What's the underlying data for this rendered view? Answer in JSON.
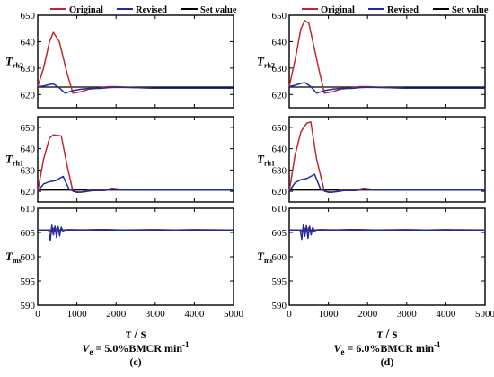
{
  "legend": [
    {
      "label": "Original",
      "color": "#c0282d"
    },
    {
      "label": "Revised",
      "color": "#1c2ea0"
    },
    {
      "label": "Set value",
      "color": "#000000"
    }
  ],
  "chart_data": [
    {
      "type": "line",
      "id": "c",
      "xlabel_var": "τ",
      "xlabel_unit": " / s",
      "xlim": [
        0,
        5000
      ],
      "xticks": [
        0,
        1000,
        2000,
        3000,
        4000,
        5000
      ],
      "caption_var": "V",
      "caption_sub": "e",
      "caption_rest": " = 5.0%BMCR min",
      "caption_sup": "-1",
      "caption_label": "(c)",
      "panels": [
        {
          "ylabel_main": "T",
          "ylabel_sub": "rh2",
          "ylim": [
            615,
            650
          ],
          "yticks": [
            620,
            630,
            640,
            650
          ],
          "series": [
            {
              "name": "Original",
              "x": [
                0,
                150,
                300,
                400,
                550,
                750,
                900,
                1100,
                1300,
                1600,
                1800,
                2000,
                2500,
                3000,
                3500,
                4000,
                4500,
                5000
              ],
              "y": [
                623,
                630,
                640,
                643.5,
                640,
                628,
                620.5,
                621,
                622,
                622.5,
                623,
                623,
                622.6,
                622.4,
                622.4,
                622.4,
                622.4,
                622.4
              ]
            },
            {
              "name": "Revised",
              "x": [
                0,
                150,
                300,
                400,
                550,
                700,
                900,
                1100,
                1300,
                1600,
                1800,
                2000,
                2500,
                3000,
                3500,
                4000,
                4500,
                5000
              ],
              "y": [
                623,
                623.2,
                623.8,
                624,
                622.5,
                620.5,
                621.5,
                622,
                622.3,
                622.3,
                622.6,
                622.7,
                622.6,
                622.4,
                622.4,
                622.4,
                622.4,
                622.4
              ]
            },
            {
              "name": "Set value",
              "x": [
                0,
                5000
              ],
              "y": [
                622.8,
                622.8
              ]
            }
          ]
        },
        {
          "ylabel_main": "T",
          "ylabel_sub": "rh1",
          "ylim": [
            615,
            655
          ],
          "yticks": [
            620,
            630,
            640,
            650
          ],
          "series": [
            {
              "name": "Original",
              "x": [
                0,
                150,
                300,
                400,
                600,
                750,
                900,
                1100,
                1300,
                1700,
                1900,
                2100,
                2500,
                3000,
                3500,
                4000,
                4500,
                5000
              ],
              "y": [
                620,
                635,
                645,
                646.5,
                646,
                632,
                620,
                619.5,
                620.5,
                620.5,
                621.5,
                621,
                620.6,
                620.6,
                620.6,
                620.6,
                620.6,
                620.6
              ]
            },
            {
              "name": "Revised",
              "x": [
                0,
                150,
                300,
                450,
                650,
                800,
                1000,
                1200,
                1400,
                1700,
                1900,
                2100,
                2500,
                3000,
                3500,
                4000,
                4500,
                5000
              ],
              "y": [
                620,
                623.5,
                624.5,
                625,
                627,
                621,
                619.5,
                619.8,
                620.4,
                620.4,
                621,
                620.8,
                620.6,
                620.6,
                620.6,
                620.6,
                620.6,
                620.6
              ]
            },
            {
              "name": "Set value",
              "x": [
                0,
                5000
              ],
              "y": [
                620.6,
                620.6
              ]
            }
          ]
        },
        {
          "ylabel_main": "T",
          "ylabel_sub": "ms",
          "ylim": [
            590,
            610
          ],
          "yticks": [
            590,
            595,
            600,
            605,
            610
          ],
          "series": [
            {
              "name": "Original",
              "x": [
                0,
                300,
                350,
                400,
                450,
                500,
                550,
                600,
                650,
                800,
                1200,
                1800,
                2200,
                3000,
                3500,
                4000,
                5000
              ],
              "y": [
                605.5,
                605.5,
                605,
                605.9,
                605.2,
                606,
                605.1,
                605.8,
                605.5,
                605.6,
                605.5,
                605.6,
                605.5,
                605.6,
                605.5,
                605.6,
                605.5
              ]
            },
            {
              "name": "Revised",
              "x": [
                0,
                280,
                320,
                360,
                400,
                440,
                480,
                520,
                560,
                600,
                640,
                700,
                1000,
                1600,
                2000,
                3000,
                4000,
                5000
              ],
              "y": [
                605.5,
                605.5,
                603.3,
                606.5,
                604.5,
                606.3,
                604,
                606.2,
                604.3,
                606.1,
                605.3,
                605.5,
                605.5,
                605.6,
                605.5,
                605.5,
                605.5,
                605.5
              ]
            },
            {
              "name": "Set value",
              "x": [
                0,
                5000
              ],
              "y": [
                605.5,
                605.5
              ]
            }
          ]
        }
      ]
    },
    {
      "type": "line",
      "id": "d",
      "xlabel_var": "τ",
      "xlabel_unit": " / s",
      "xlim": [
        0,
        5000
      ],
      "xticks": [
        0,
        1000,
        2000,
        3000,
        4000,
        5000
      ],
      "caption_var": "V",
      "caption_sub": "e",
      "caption_rest": " = 6.0%BMCR min",
      "caption_sup": "-1",
      "caption_label": "(d)",
      "panels": [
        {
          "ylabel_main": "T",
          "ylabel_sub": "rh2",
          "ylim": [
            615,
            650
          ],
          "yticks": [
            620,
            630,
            640,
            650
          ],
          "series": [
            {
              "name": "Original",
              "x": [
                0,
                150,
                300,
                400,
                500,
                750,
                900,
                1100,
                1300,
                1600,
                1800,
                2000,
                2500,
                3000,
                3500,
                4000,
                4500,
                5000
              ],
              "y": [
                623,
                633,
                645,
                648,
                647,
                630,
                620.5,
                621,
                622,
                622.5,
                623,
                623,
                622.6,
                622.4,
                622.4,
                622.4,
                622.4,
                622.4
              ]
            },
            {
              "name": "Revised",
              "x": [
                0,
                150,
                300,
                400,
                550,
                700,
                900,
                1100,
                1300,
                1600,
                1800,
                2000,
                2500,
                3000,
                3500,
                4000,
                4500,
                5000
              ],
              "y": [
                623,
                623.5,
                624.2,
                624.5,
                623,
                620.5,
                621.5,
                622,
                622.3,
                622.3,
                622.6,
                622.7,
                622.6,
                622.4,
                622.4,
                622.4,
                622.4,
                622.4
              ]
            },
            {
              "name": "Set value",
              "x": [
                0,
                5000
              ],
              "y": [
                622.8,
                622.8
              ]
            }
          ]
        },
        {
          "ylabel_main": "T",
          "ylabel_sub": "rh1",
          "ylim": [
            615,
            655
          ],
          "yticks": [
            620,
            630,
            640,
            650
          ],
          "series": [
            {
              "name": "Original",
              "x": [
                0,
                150,
                300,
                450,
                550,
                700,
                900,
                1100,
                1300,
                1700,
                1900,
                2100,
                2500,
                3000,
                3500,
                4000,
                4500,
                5000
              ],
              "y": [
                620,
                637,
                648,
                652,
                652.5,
                635,
                620,
                619.5,
                620.5,
                620.5,
                621.5,
                621,
                620.6,
                620.6,
                620.6,
                620.6,
                620.6,
                620.6
              ]
            },
            {
              "name": "Revised",
              "x": [
                0,
                150,
                300,
                450,
                650,
                800,
                1000,
                1200,
                1400,
                1700,
                1900,
                2100,
                2500,
                3000,
                3500,
                4000,
                4500,
                5000
              ],
              "y": [
                620,
                624,
                625.5,
                626,
                628,
                621,
                619.5,
                619.8,
                620.4,
                620.4,
                621,
                620.8,
                620.6,
                620.6,
                620.6,
                620.6,
                620.6,
                620.6
              ]
            },
            {
              "name": "Set value",
              "x": [
                0,
                5000
              ],
              "y": [
                620.6,
                620.6
              ]
            }
          ]
        },
        {
          "ylabel_main": "T",
          "ylabel_sub": "ms",
          "ylim": [
            590,
            610
          ],
          "yticks": [
            590,
            595,
            600,
            605,
            610
          ],
          "series": [
            {
              "name": "Original",
              "x": [
                0,
                300,
                350,
                400,
                450,
                500,
                550,
                600,
                650,
                800,
                1200,
                1800,
                2200,
                3000,
                3500,
                4000,
                5000
              ],
              "y": [
                605.5,
                605.5,
                605,
                605.9,
                605.2,
                606,
                605.1,
                605.8,
                605.5,
                605.6,
                605.5,
                605.6,
                605.5,
                605.6,
                605.5,
                605.6,
                605.5
              ]
            },
            {
              "name": "Revised",
              "x": [
                0,
                280,
                320,
                360,
                400,
                440,
                480,
                520,
                560,
                600,
                640,
                700,
                1000,
                1600,
                2000,
                3000,
                4000,
                5000
              ],
              "y": [
                605.5,
                605.5,
                603.6,
                606.6,
                604.2,
                606.4,
                603.8,
                606.3,
                604.5,
                606.1,
                605.3,
                605.5,
                605.5,
                605.6,
                605.5,
                605.5,
                605.5,
                605.5
              ]
            },
            {
              "name": "Set value",
              "x": [
                0,
                5000
              ],
              "y": [
                605.5,
                605.5
              ]
            }
          ]
        }
      ]
    }
  ]
}
